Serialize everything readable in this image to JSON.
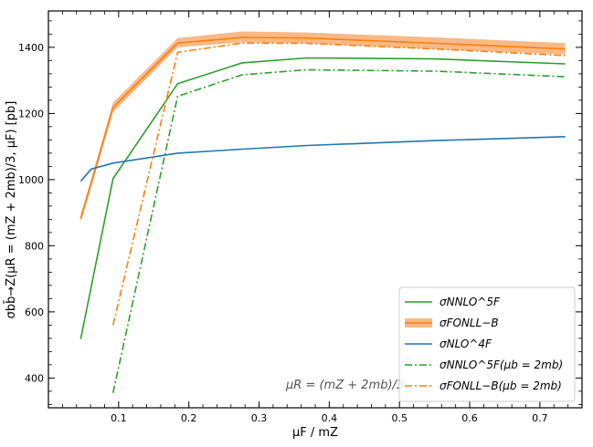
{
  "chart_data": {
    "type": "line",
    "xlabel": "μF / mZ",
    "ylabel": "σbb̄→Z(μR = (mZ + 2mb)/3, μF) [pb]",
    "xlim": [
      0.0,
      0.76
    ],
    "ylim": [
      310,
      1510
    ],
    "xticks": [
      0.1,
      0.2,
      0.3,
      0.4,
      0.5,
      0.6,
      0.7
    ],
    "xtick_labels": [
      "0.1",
      "0.2",
      "0.3",
      "0.4",
      "0.5",
      "0.6",
      "0.7"
    ],
    "yticks": [
      400,
      600,
      800,
      1000,
      1200,
      1400
    ],
    "ytick_labels": [
      "400",
      "600",
      "800",
      "1000",
      "1200",
      "1400"
    ],
    "annotation": "μR = (mZ + 2mb)/3",
    "legend_position": "lower-right",
    "grid": false,
    "series": [
      {
        "name": "σNNLO^5F",
        "color": "#2ca02c",
        "dash": "solid",
        "x": [
          0.046,
          0.092,
          0.184,
          0.276,
          0.368,
          0.552,
          0.736
        ],
        "y": [
          518,
          1003,
          1290,
          1353,
          1368,
          1365,
          1350
        ]
      },
      {
        "name": "σFONLL−B",
        "color": "#ff7f0e",
        "dash": "solid",
        "x": [
          0.046,
          0.061,
          0.092,
          0.184,
          0.276,
          0.368,
          0.552,
          0.736
        ],
        "y": [
          882,
          990,
          1218,
          1413,
          1430,
          1428,
          1412,
          1395
        ],
        "band_lower": [
          870,
          978,
          1204,
          1400,
          1415,
          1412,
          1395,
          1378
        ],
        "band_upper": [
          895,
          1003,
          1233,
          1428,
          1448,
          1445,
          1430,
          1413
        ],
        "band_color": "#f5a25d"
      },
      {
        "name": "σNLO^4F",
        "color": "#1f77b4",
        "dash": "solid",
        "x": [
          0.046,
          0.061,
          0.092,
          0.184,
          0.276,
          0.368,
          0.552,
          0.736
        ],
        "y": [
          995,
          1032,
          1050,
          1080,
          1092,
          1103,
          1118,
          1130
        ]
      },
      {
        "name": "σNNLO^5F(μb = 2mb)",
        "color": "#2ca02c",
        "dash": "dashdot",
        "x": [
          0.092,
          0.184,
          0.276,
          0.368,
          0.552,
          0.736
        ],
        "y": [
          355,
          1252,
          1317,
          1332,
          1328,
          1311
        ]
      },
      {
        "name": "σFONLL−B(μb = 2mb)",
        "color": "#ff7f0e",
        "dash": "dashdot",
        "x": [
          0.092,
          0.184,
          0.276,
          0.368,
          0.552,
          0.736
        ],
        "y": [
          560,
          1385,
          1413,
          1412,
          1395,
          1375
        ]
      }
    ]
  }
}
